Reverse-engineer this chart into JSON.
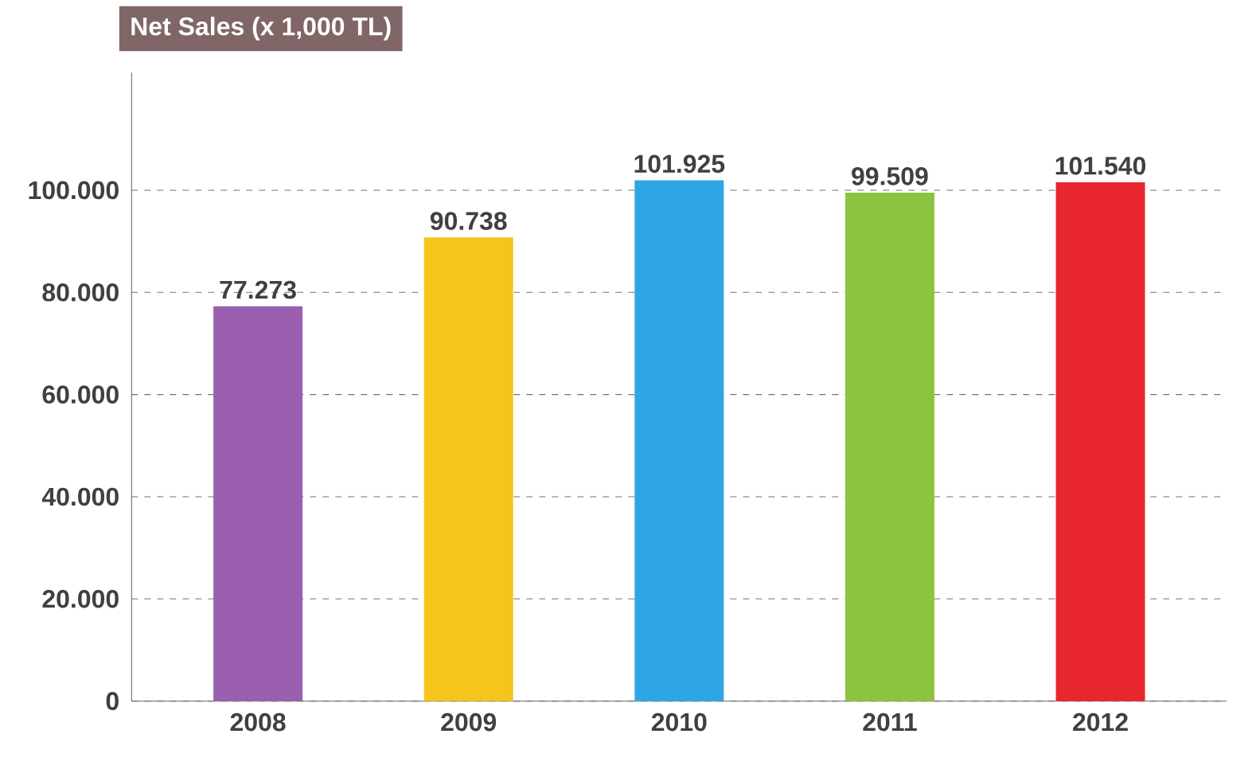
{
  "chart_data": {
    "type": "bar",
    "title": "Net Sales (x 1,000 TL)",
    "categories": [
      "2008",
      "2009",
      "2010",
      "2011",
      "2012"
    ],
    "values": [
      77273,
      90738,
      101925,
      99509,
      101540
    ],
    "value_labels": [
      "77.273",
      "90.738",
      "101.925",
      "99.509",
      "101.540"
    ],
    "colors": [
      "#9b5fb0",
      "#f6c51b",
      "#2ea6e3",
      "#8cc43f",
      "#e8262d"
    ],
    "ylim": [
      0,
      123000
    ],
    "yticks": [
      0,
      {
        "value": 20000,
        "label": "20.000"
      },
      {
        "value": 40000,
        "label": "40.000"
      },
      {
        "value": 60000,
        "label": "60.000"
      },
      {
        "value": 80000,
        "label": "80.000"
      },
      {
        "value": 100000,
        "label": "100.000"
      }
    ],
    "grid": "y"
  }
}
